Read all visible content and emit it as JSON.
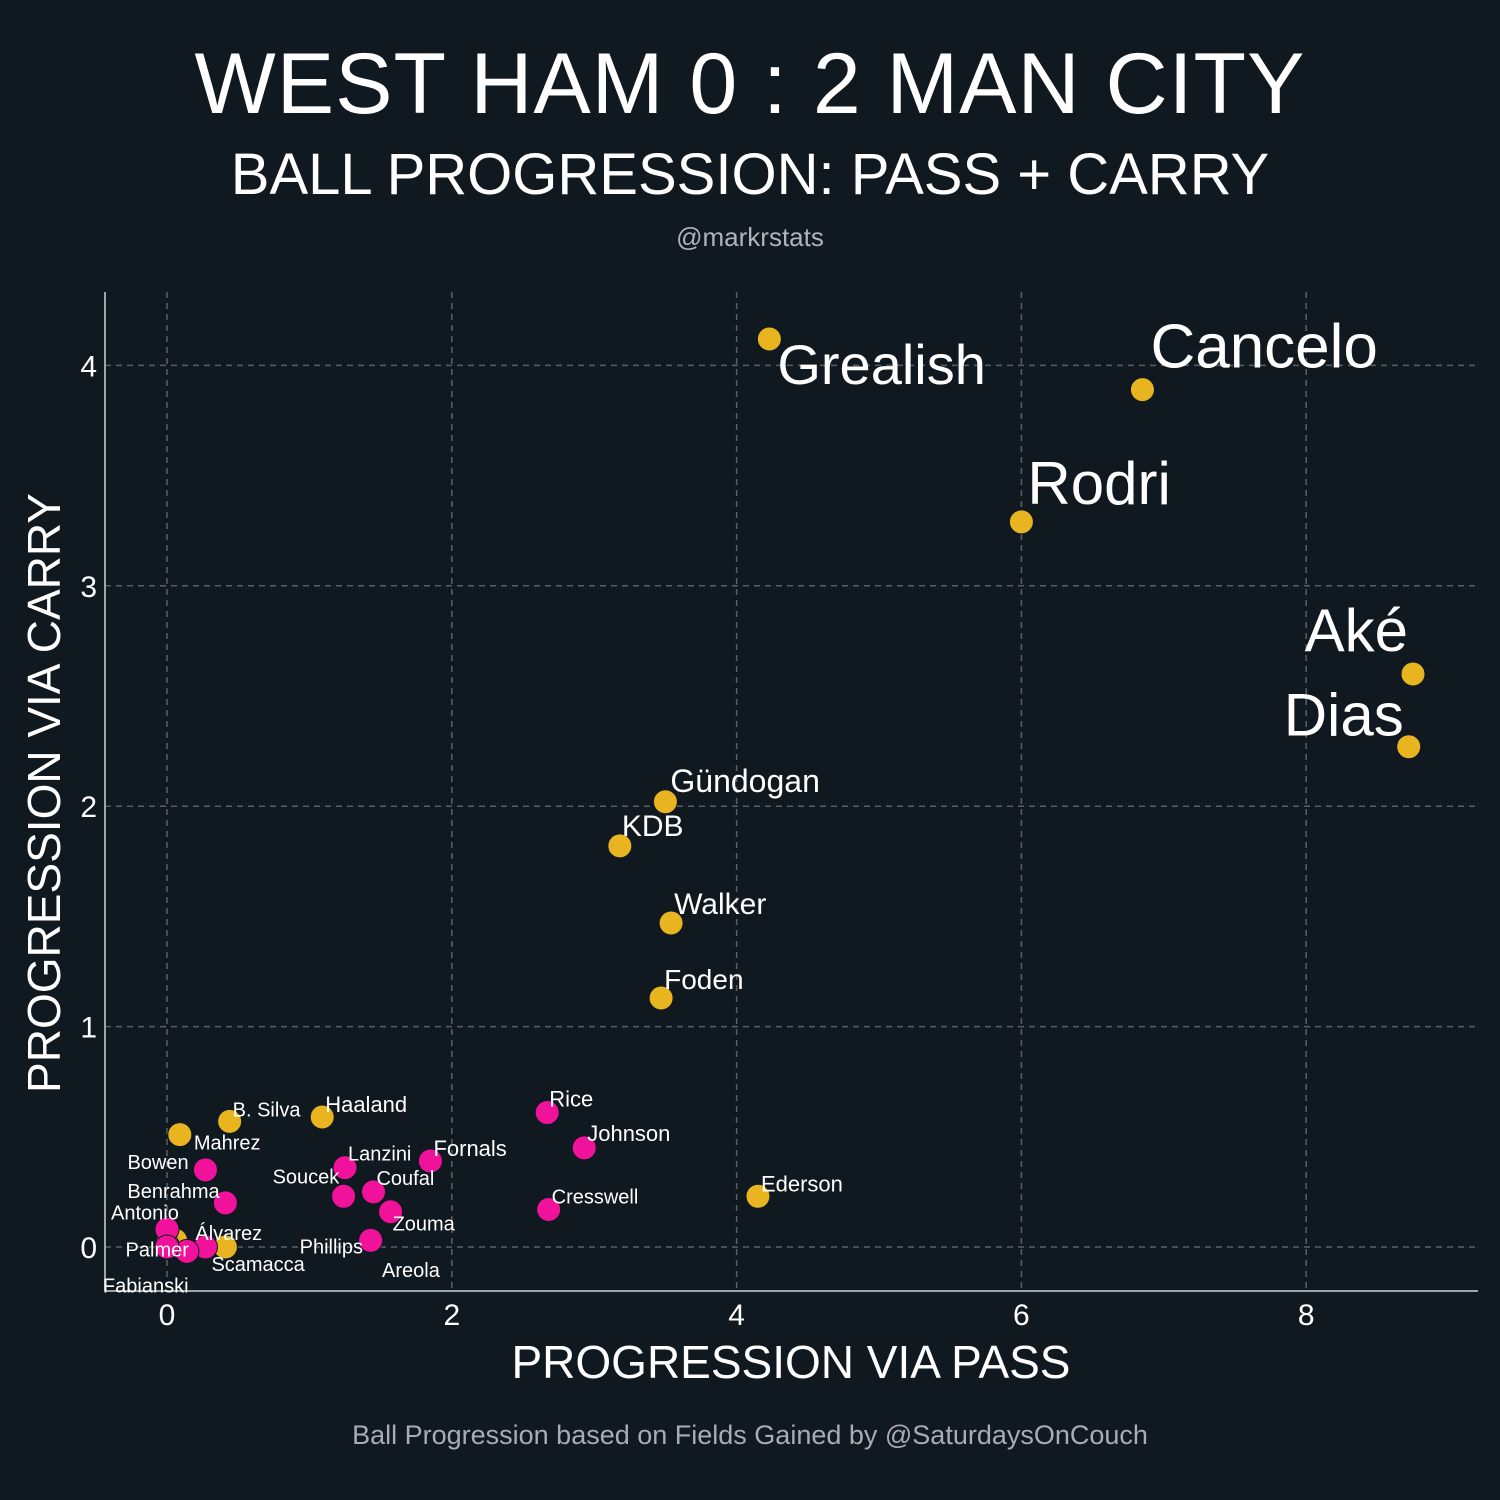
{
  "header": {
    "title": "WEST HAM 0 : 2 MAN CITY",
    "subtitle": "BALL PROGRESSION: PASS + CARRY",
    "handle": "@markrstats"
  },
  "footer": {
    "credit": "Ball Progression based on Fields Gained by @SaturdaysOnCouch"
  },
  "colors": {
    "background": "#101820",
    "man_city": "#E8B420",
    "west_ham": "#F0129A",
    "grid": "#5a6068",
    "axis": "#9aa7a4",
    "text": "#ffffff"
  },
  "chart_data": {
    "type": "scatter",
    "title": "WEST HAM 0 : 2 MAN CITY",
    "subtitle": "BALL PROGRESSION: PASS + CARRY",
    "xlabel": "PROGRESSION VIA PASS",
    "ylabel": "PROGRESSION VIA CARRY",
    "xlim": [
      -0.45,
      9.2
    ],
    "ylim": [
      -0.2,
      4.3
    ],
    "xticks": [
      0,
      2,
      4,
      6,
      8
    ],
    "yticks": [
      0,
      1,
      2,
      3,
      4
    ],
    "xtick_labels": [
      "0",
      "2",
      "4",
      "6",
      "8"
    ],
    "ytick_labels": [
      "0",
      "1",
      "2",
      "3",
      "4"
    ],
    "grid": true,
    "series": [
      {
        "team": "Man City",
        "color": "#E8B420",
        "points": [
          {
            "label": "Grealish",
            "x": 4.23,
            "y": 4.12
          },
          {
            "label": "Cancelo",
            "x": 6.85,
            "y": 3.89
          },
          {
            "label": "Rodri",
            "x": 6.0,
            "y": 3.29
          },
          {
            "label": "Aké",
            "x": 8.75,
            "y": 2.6
          },
          {
            "label": "Dias",
            "x": 8.72,
            "y": 2.27
          },
          {
            "label": "Gündogan",
            "x": 3.5,
            "y": 2.02
          },
          {
            "label": "KDB",
            "x": 3.18,
            "y": 1.82
          },
          {
            "label": "Walker",
            "x": 3.54,
            "y": 1.47
          },
          {
            "label": "Foden",
            "x": 3.47,
            "y": 1.13
          },
          {
            "label": "Haaland",
            "x": 1.09,
            "y": 0.59
          },
          {
            "label": "B. Silva",
            "x": 0.44,
            "y": 0.57
          },
          {
            "label": "Mahrez",
            "x": 0.09,
            "y": 0.51
          },
          {
            "label": "Ederson",
            "x": 4.15,
            "y": 0.23
          },
          {
            "label": "Álvarez",
            "x": 0.41,
            "y": 0.0
          },
          {
            "label": "Palmer",
            "x": 0.06,
            "y": 0.03
          },
          {
            "label": "",
            "x": 0.0,
            "y": 0.01
          }
        ]
      },
      {
        "team": "West Ham",
        "color": "#F0129A",
        "points": [
          {
            "label": "Rice",
            "x": 2.67,
            "y": 0.61
          },
          {
            "label": "Johnson",
            "x": 2.93,
            "y": 0.45
          },
          {
            "label": "Fornals",
            "x": 1.85,
            "y": 0.39
          },
          {
            "label": "Lanzini",
            "x": 1.25,
            "y": 0.36
          },
          {
            "label": "Bowen",
            "x": 0.27,
            "y": 0.35
          },
          {
            "label": "Coufal",
            "x": 1.45,
            "y": 0.25
          },
          {
            "label": "Soucek",
            "x": 1.24,
            "y": 0.23
          },
          {
            "label": "Benrahma",
            "x": 0.41,
            "y": 0.2
          },
          {
            "label": "Cresswell",
            "x": 2.68,
            "y": 0.17
          },
          {
            "label": "Zouma",
            "x": 1.57,
            "y": 0.16
          },
          {
            "label": "Antonio",
            "x": 0.0,
            "y": 0.08
          },
          {
            "label": "Phillips",
            "x": 1.43,
            "y": 0.03
          },
          {
            "label": "Scamacca",
            "x": 0.27,
            "y": 0.0
          },
          {
            "label": "Fabianski",
            "x": 0.14,
            "y": -0.02
          },
          {
            "label": "Areola",
            "x": 0.0,
            "y": 0.0
          }
        ]
      }
    ]
  }
}
